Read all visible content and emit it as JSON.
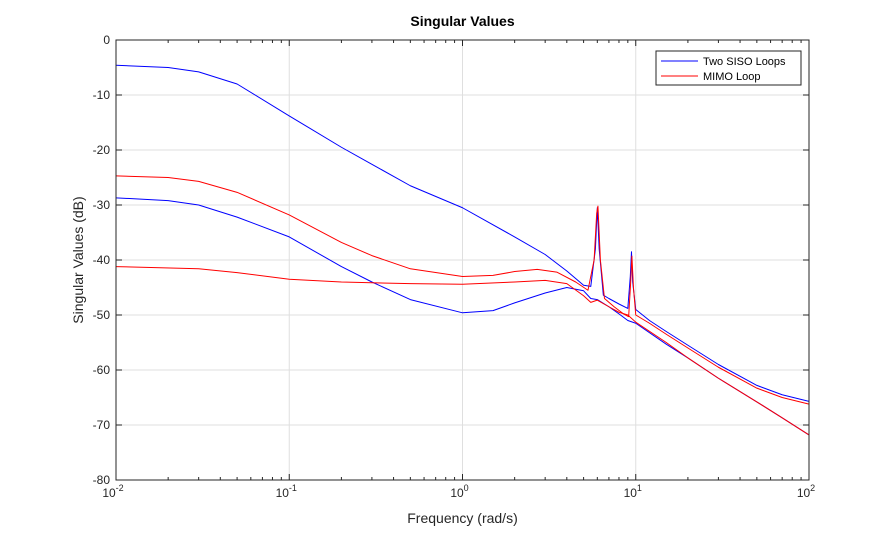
{
  "chart_data": {
    "type": "line",
    "title": "Singular Values",
    "xlabel": "Frequency (rad/s)",
    "ylabel": "Singular Values (dB)",
    "xscale": "log",
    "xlim": [
      0.01,
      100
    ],
    "ylim": [
      -80,
      0
    ],
    "grid": true,
    "legend_location": "top-right",
    "x_ticks": [
      {
        "base": "10",
        "exp": "-2"
      },
      {
        "base": "10",
        "exp": "-1"
      },
      {
        "base": "10",
        "exp": "0"
      },
      {
        "base": "10",
        "exp": "1"
      },
      {
        "base": "10",
        "exp": "2"
      }
    ],
    "y_ticks": [
      "0",
      "-10",
      "-20",
      "-30",
      "-40",
      "-50",
      "-60",
      "-70",
      "-80"
    ],
    "y_tick_values": [
      0,
      -10,
      -20,
      -30,
      -40,
      -50,
      -60,
      -70,
      -80
    ],
    "legend": [
      {
        "name": "Two SISO Loops",
        "color": "#0000ff"
      },
      {
        "name": "MIMO Loop",
        "color": "#ff0000"
      }
    ],
    "series": [
      {
        "name": "Two SISO Loops (sigma 1)",
        "group": "Two SISO Loops",
        "color": "#0000ff",
        "points": [
          [
            0.01,
            -4.6
          ],
          [
            0.02,
            -5.0
          ],
          [
            0.03,
            -5.8
          ],
          [
            0.05,
            -8.0
          ],
          [
            0.1,
            -13.8
          ],
          [
            0.2,
            -19.5
          ],
          [
            0.3,
            -22.6
          ],
          [
            0.5,
            -26.5
          ],
          [
            1,
            -30.5
          ],
          [
            2,
            -35.8
          ],
          [
            3,
            -39.0
          ],
          [
            4,
            -42.0
          ],
          [
            5,
            -44.6
          ],
          [
            5.5,
            -44.8
          ],
          [
            5.85,
            -38
          ],
          [
            6.0,
            -30.5
          ],
          [
            6.15,
            -38
          ],
          [
            6.5,
            -46.4
          ],
          [
            7,
            -47.0
          ],
          [
            8,
            -48.0
          ],
          [
            9.0,
            -48.8
          ],
          [
            9.3,
            -43
          ],
          [
            9.45,
            -38.5
          ],
          [
            9.6,
            -44
          ],
          [
            10,
            -49.0
          ],
          [
            12,
            -51.0
          ],
          [
            15,
            -53.0
          ],
          [
            20,
            -55.5
          ],
          [
            30,
            -59.0
          ],
          [
            50,
            -62.8
          ],
          [
            70,
            -64.5
          ],
          [
            100,
            -65.7
          ]
        ]
      },
      {
        "name": "Two SISO Loops (sigma 2)",
        "group": "Two SISO Loops",
        "color": "#0000ff",
        "points": [
          [
            0.01,
            -28.7
          ],
          [
            0.02,
            -29.2
          ],
          [
            0.03,
            -30.0
          ],
          [
            0.05,
            -32.2
          ],
          [
            0.1,
            -35.8
          ],
          [
            0.2,
            -41.2
          ],
          [
            0.3,
            -44.0
          ],
          [
            0.5,
            -47.2
          ],
          [
            1,
            -49.6
          ],
          [
            1.5,
            -49.2
          ],
          [
            2,
            -47.8
          ],
          [
            3,
            -46.0
          ],
          [
            4,
            -45.0
          ],
          [
            5,
            -45.6
          ],
          [
            5.5,
            -47.0
          ],
          [
            6,
            -47.2
          ],
          [
            7,
            -48.5
          ],
          [
            8,
            -49.8
          ],
          [
            9,
            -51.0
          ],
          [
            10,
            -51.5
          ],
          [
            15,
            -55.3
          ],
          [
            20,
            -57.8
          ],
          [
            30,
            -61.5
          ],
          [
            50,
            -65.8
          ],
          [
            70,
            -68.7
          ],
          [
            100,
            -71.8
          ]
        ]
      },
      {
        "name": "MIMO Loop (sigma 1)",
        "group": "MIMO Loop",
        "color": "#ff0000",
        "points": [
          [
            0.01,
            -24.7
          ],
          [
            0.02,
            -25.0
          ],
          [
            0.03,
            -25.7
          ],
          [
            0.05,
            -27.7
          ],
          [
            0.1,
            -31.8
          ],
          [
            0.2,
            -36.8
          ],
          [
            0.3,
            -39.2
          ],
          [
            0.5,
            -41.6
          ],
          [
            1,
            -43.0
          ],
          [
            1.5,
            -42.8
          ],
          [
            2,
            -42.1
          ],
          [
            2.7,
            -41.7
          ],
          [
            3.5,
            -42.2
          ],
          [
            4.5,
            -44.0
          ],
          [
            5.3,
            -45.5
          ],
          [
            5.75,
            -40
          ],
          [
            5.95,
            -31.5
          ],
          [
            6.05,
            -30.2
          ],
          [
            6.25,
            -40
          ],
          [
            6.6,
            -47.0
          ],
          [
            7.5,
            -48.5
          ],
          [
            8.5,
            -49.8
          ],
          [
            9.1,
            -50.3
          ],
          [
            9.35,
            -44
          ],
          [
            9.5,
            -39.3
          ],
          [
            9.7,
            -45
          ],
          [
            10,
            -50.0
          ],
          [
            12,
            -51.5
          ],
          [
            15,
            -53.5
          ],
          [
            20,
            -56.0
          ],
          [
            30,
            -59.5
          ],
          [
            50,
            -63.3
          ],
          [
            70,
            -65.0
          ],
          [
            100,
            -66.2
          ]
        ]
      },
      {
        "name": "MIMO Loop (sigma 2)",
        "group": "MIMO Loop",
        "color": "#ff0000",
        "points": [
          [
            0.01,
            -41.2
          ],
          [
            0.03,
            -41.6
          ],
          [
            0.05,
            -42.3
          ],
          [
            0.1,
            -43.5
          ],
          [
            0.2,
            -44.0
          ],
          [
            0.5,
            -44.3
          ],
          [
            1,
            -44.4
          ],
          [
            2,
            -44.0
          ],
          [
            3,
            -43.7
          ],
          [
            4,
            -44.3
          ],
          [
            5,
            -46.5
          ],
          [
            5.5,
            -47.7
          ],
          [
            6,
            -47.3
          ],
          [
            7,
            -48.5
          ],
          [
            8,
            -49.5
          ],
          [
            9,
            -50.0
          ],
          [
            10,
            -51.3
          ],
          [
            15,
            -55.0
          ],
          [
            20,
            -57.8
          ],
          [
            30,
            -61.5
          ],
          [
            50,
            -65.8
          ],
          [
            70,
            -68.7
          ],
          [
            100,
            -71.8
          ]
        ]
      }
    ]
  }
}
